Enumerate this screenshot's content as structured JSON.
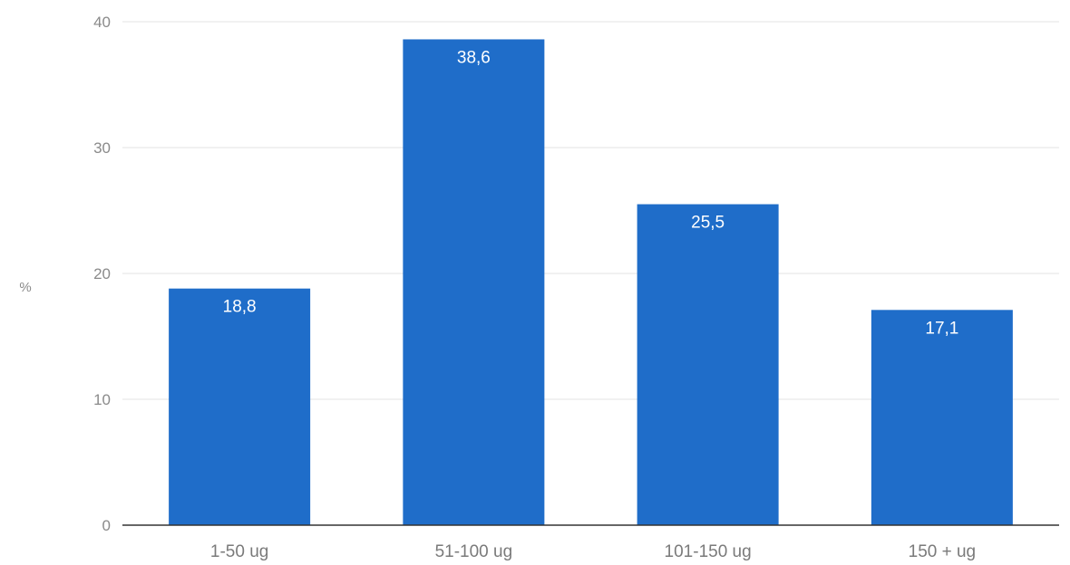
{
  "chart_data": {
    "type": "bar",
    "categories": [
      "1-50 ug",
      "51-100 ug",
      "101-150 ug",
      "150 + ug"
    ],
    "values": [
      18.8,
      38.6,
      25.5,
      17.1
    ],
    "value_labels": [
      "18,8",
      "38,6",
      "25,5",
      "17,1"
    ],
    "title": "",
    "xlabel": "",
    "ylabel": "%",
    "ylim": [
      0,
      40
    ],
    "yticks": [
      "0",
      "10",
      "20",
      "30",
      "40"
    ],
    "grid": true,
    "legend": "none",
    "bar_color": "#1f6dc9",
    "gridline_color": "#e3e3e3",
    "axis_color": "#333333"
  }
}
